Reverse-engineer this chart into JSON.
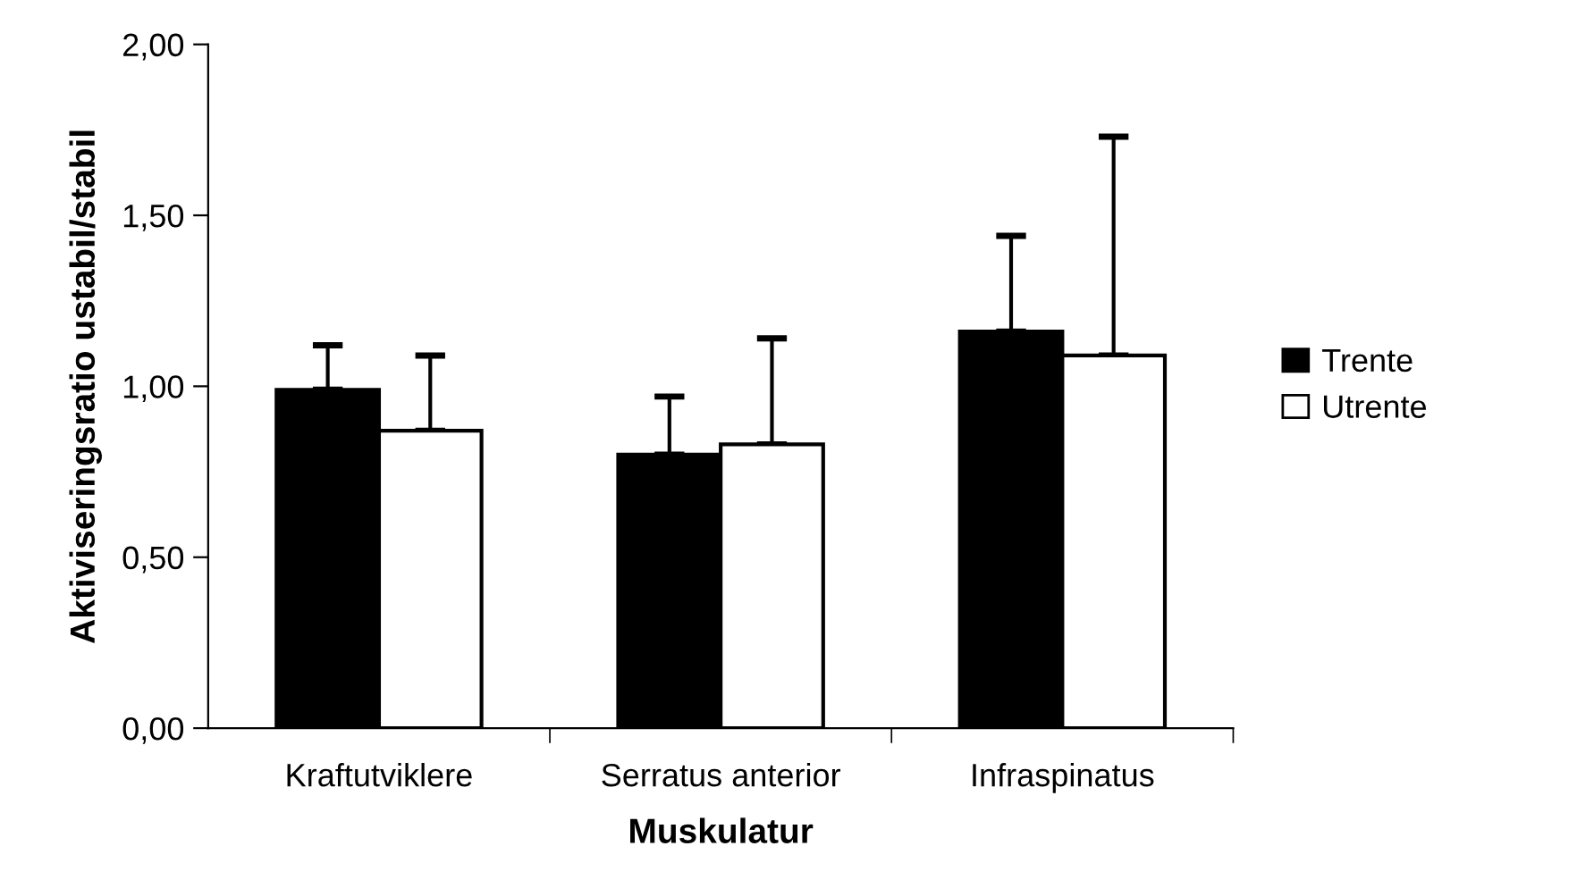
{
  "chart_data": {
    "type": "bar",
    "xlabel": "Muskulatur",
    "ylabel": "Aktiviseringsratio ustabil/stabil",
    "categories": [
      "Kraftutviklere",
      "Serratus anterior",
      "Infraspinatus"
    ],
    "series": [
      {
        "name": "Trente",
        "color": "#000000",
        "values": [
          0.99,
          0.8,
          1.16
        ],
        "errors": [
          [
            0.99,
            1.12
          ],
          [
            0.8,
            0.97
          ],
          [
            1.16,
            1.44
          ]
        ]
      },
      {
        "name": "Utrente",
        "color": "#ffffff",
        "values": [
          0.87,
          0.83,
          1.09
        ],
        "errors": [
          [
            0.87,
            1.09
          ],
          [
            0.83,
            1.14
          ],
          [
            1.09,
            1.73
          ]
        ]
      }
    ],
    "ylim": [
      0,
      2
    ],
    "yticks": [
      {
        "value": 0,
        "label": "0,00"
      },
      {
        "value": 0.5,
        "label": "0,50"
      },
      {
        "value": 1,
        "label": "1,00"
      },
      {
        "value": 1.5,
        "label": "1,50"
      },
      {
        "value": 2,
        "label": "2,00"
      }
    ],
    "grid": false,
    "legend": "right"
  }
}
